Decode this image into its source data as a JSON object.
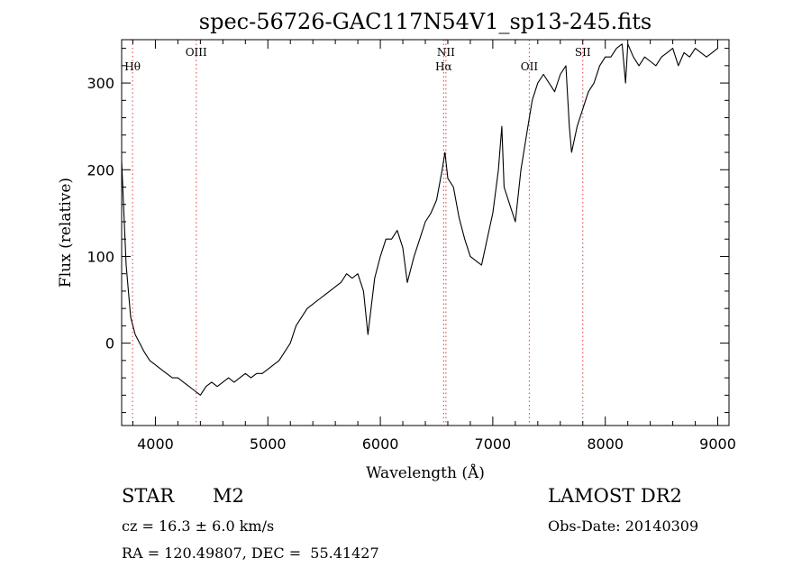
{
  "chart_data": {
    "type": "line",
    "title": "spec-56726-GAC117N54V1_sp13-245.fits",
    "xlabel": "Wavelength (Å)",
    "ylabel": "Flux (relative)",
    "xlim": [
      3700,
      9100
    ],
    "ylim": [
      -95,
      350
    ],
    "xticks": [
      4000,
      5000,
      6000,
      7000,
      8000,
      9000
    ],
    "yticks": [
      0,
      100,
      200,
      300
    ],
    "grid": false,
    "line_color": "#000000",
    "marker_color": "#e06060",
    "lines": [
      {
        "label": "Hθ",
        "x": 3797,
        "label_row": "lower"
      },
      {
        "label": "OIII",
        "x": 4363,
        "label_row": "upper"
      },
      {
        "label": "NII",
        "x": 6583,
        "label_row": "upper"
      },
      {
        "label": "Hα",
        "x": 6563,
        "label_row": "lower"
      },
      {
        "label": "OII",
        "x": 7325,
        "label_row": "lower"
      },
      {
        "label": "SII",
        "x": 7800,
        "label_row": "upper"
      }
    ],
    "series": [
      {
        "x": [
          3700,
          3740,
          3780,
          3820,
          3860,
          3900,
          3950,
          4000,
          4050,
          4100,
          4150,
          4200,
          4250,
          4300,
          4350,
          4400,
          4450,
          4500,
          4550,
          4600,
          4650,
          4700,
          4750,
          4800,
          4850,
          4900,
          4950,
          5000,
          5050,
          5100,
          5150,
          5200,
          5250,
          5300,
          5350,
          5400,
          5450,
          5500,
          5550,
          5600,
          5650,
          5700,
          5750,
          5800,
          5850,
          5890,
          5950,
          6000,
          6050,
          6100,
          6150,
          6200,
          6240,
          6300,
          6350,
          6400,
          6450,
          6500,
          6550,
          6575,
          6600,
          6650,
          6700,
          6750,
          6800,
          6850,
          6900,
          6950,
          7000,
          7050,
          7080,
          7100,
          7150,
          7200,
          7250,
          7300,
          7350,
          7400,
          7450,
          7500,
          7550,
          7600,
          7650,
          7680,
          7700,
          7750,
          7800,
          7850,
          7900,
          7950,
          8000,
          8050,
          8100,
          8150,
          8180,
          8200,
          8250,
          8300,
          8350,
          8400,
          8450,
          8500,
          8550,
          8600,
          8650,
          8700,
          8750,
          8800,
          8850,
          8900,
          8950,
          9000
        ],
        "y": [
          210,
          90,
          30,
          10,
          0,
          -10,
          -20,
          -25,
          -30,
          -35,
          -40,
          -40,
          -45,
          -50,
          -55,
          -60,
          -50,
          -45,
          -50,
          -45,
          -40,
          -45,
          -40,
          -35,
          -40,
          -35,
          -35,
          -30,
          -25,
          -20,
          -10,
          0,
          20,
          30,
          40,
          45,
          50,
          55,
          60,
          65,
          70,
          80,
          75,
          80,
          60,
          10,
          75,
          100,
          120,
          120,
          130,
          110,
          70,
          100,
          120,
          140,
          150,
          165,
          200,
          220,
          190,
          180,
          145,
          120,
          100,
          95,
          90,
          120,
          150,
          200,
          250,
          180,
          160,
          140,
          200,
          240,
          280,
          300,
          310,
          300,
          290,
          310,
          320,
          250,
          220,
          250,
          270,
          290,
          300,
          320,
          330,
          330,
          340,
          345,
          300,
          345,
          330,
          320,
          330,
          325,
          320,
          330,
          335,
          340,
          320,
          335,
          330,
          340,
          335,
          330,
          335,
          340
        ]
      }
    ]
  },
  "info": {
    "object_class": "STAR",
    "subclass": "M2",
    "release": "LAMOST DR2",
    "velocity": "cz = 16.3 ± 6.0 km/s",
    "obs_date": "Obs-Date: 20140309",
    "coords": "RA = 120.49807, DEC =  55.41427"
  }
}
